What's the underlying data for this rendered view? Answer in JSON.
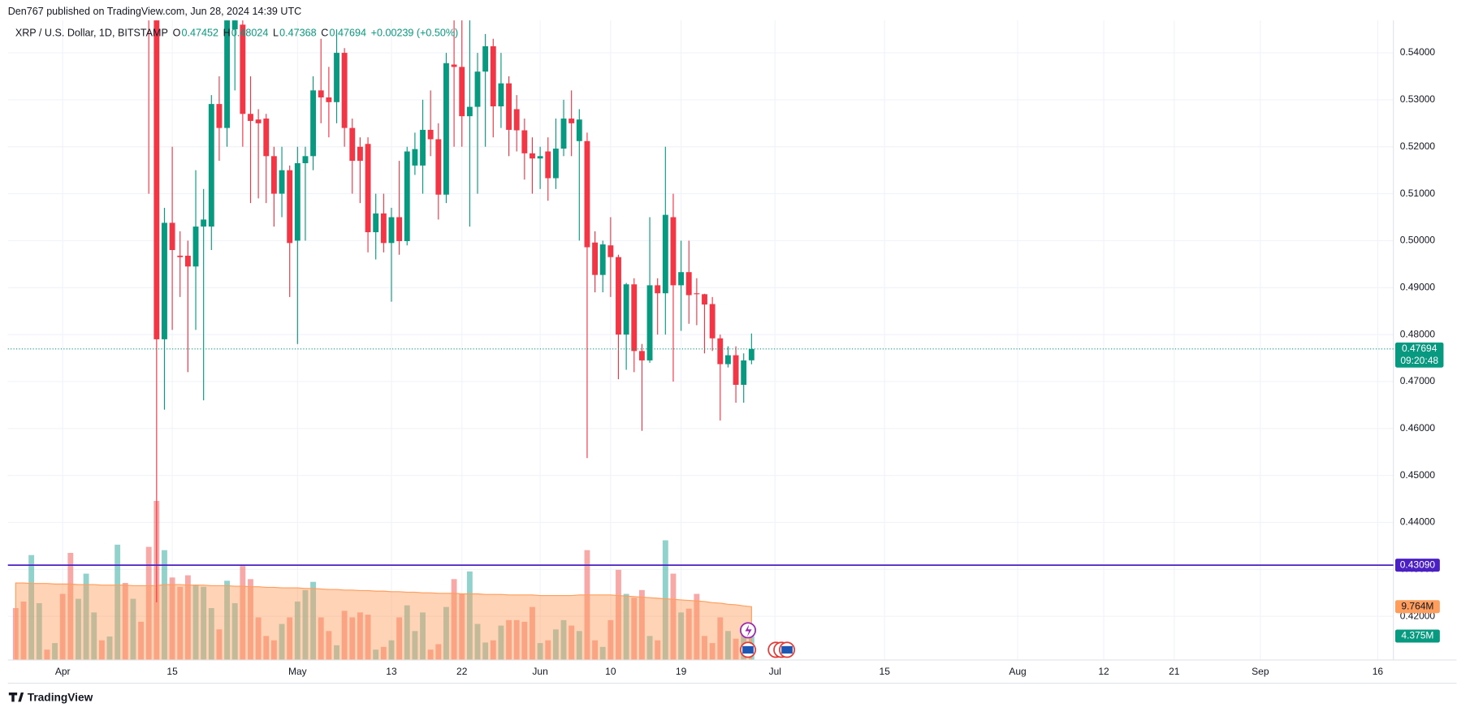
{
  "header": "Den767 published on TradingView.com, Jun 28, 2024 14:39 UTC",
  "footer": "TradingView",
  "chart_data": {
    "type": "candlestick",
    "legend": {
      "symbol": "XRP / U.S. Dollar, 1D, BITSTAMP",
      "open_label": "O",
      "open": "0.47452",
      "high_label": "H",
      "high": "0.48024",
      "low_label": "L",
      "low": "0.47368",
      "close_label": "C",
      "close": "0.47694",
      "change": "+0.00239 (+0.50%)"
    },
    "x": [
      "2024-03-26",
      "2024-03-27",
      "2024-03-28",
      "2024-03-29",
      "2024-03-30",
      "2024-03-31",
      "2024-04-01",
      "2024-04-02",
      "2024-04-03",
      "2024-04-04",
      "2024-04-05",
      "2024-04-06",
      "2024-04-07",
      "2024-04-08",
      "2024-04-09",
      "2024-04-10",
      "2024-04-11",
      "2024-04-12",
      "2024-04-13",
      "2024-04-14",
      "2024-04-15",
      "2024-04-16",
      "2024-04-17",
      "2024-04-18",
      "2024-04-19",
      "2024-04-20",
      "2024-04-21",
      "2024-04-22",
      "2024-04-23",
      "2024-04-24",
      "2024-04-25",
      "2024-04-26",
      "2024-04-27",
      "2024-04-28",
      "2024-04-29",
      "2024-04-30",
      "2024-05-01",
      "2024-05-02",
      "2024-05-03",
      "2024-05-04",
      "2024-05-05",
      "2024-05-06",
      "2024-05-07",
      "2024-05-08",
      "2024-05-09",
      "2024-05-10",
      "2024-05-11",
      "2024-05-12",
      "2024-05-13",
      "2024-05-14",
      "2024-05-15",
      "2024-05-16",
      "2024-05-17",
      "2024-05-18",
      "2024-05-19",
      "2024-05-20",
      "2024-05-21",
      "2024-05-22",
      "2024-05-23",
      "2024-05-24",
      "2024-05-25",
      "2024-05-26",
      "2024-05-27",
      "2024-05-28",
      "2024-05-29",
      "2024-05-30",
      "2024-05-31",
      "2024-06-01",
      "2024-06-02",
      "2024-06-03",
      "2024-06-04",
      "2024-06-05",
      "2024-06-06",
      "2024-06-07",
      "2024-06-08",
      "2024-06-09",
      "2024-06-10",
      "2024-06-11",
      "2024-06-12",
      "2024-06-13",
      "2024-06-14",
      "2024-06-15",
      "2024-06-16",
      "2024-06-17",
      "2024-06-18",
      "2024-06-19",
      "2024-06-20",
      "2024-06-21",
      "2024-06-22",
      "2024-06-23",
      "2024-06-24",
      "2024-06-25",
      "2024-06-26",
      "2024-06-27",
      "2024-06-28"
    ],
    "candles": [
      null,
      null,
      null,
      null,
      null,
      null,
      null,
      null,
      null,
      null,
      null,
      null,
      null,
      null,
      null,
      null,
      null,
      [
        0.615,
        0.622,
        0.51,
        0.587
      ],
      [
        0.587,
        0.595,
        0.423,
        0.479
      ],
      [
        0.479,
        0.507,
        0.464,
        0.5038
      ],
      [
        0.5038,
        0.52,
        0.481,
        0.498
      ],
      [
        0.4968,
        0.502,
        0.488,
        0.4965
      ],
      [
        0.4968,
        0.5,
        0.472,
        0.4945
      ],
      [
        0.4945,
        0.515,
        0.481,
        0.503
      ],
      [
        0.503,
        0.511,
        0.466,
        0.5045
      ],
      [
        0.503,
        0.531,
        0.498,
        0.5291
      ],
      [
        0.5291,
        0.535,
        0.517,
        0.524
      ],
      [
        0.524,
        0.55,
        0.52,
        0.547
      ],
      [
        0.545,
        0.553,
        0.532,
        0.548
      ],
      [
        0.546,
        0.55,
        0.52,
        0.527
      ],
      [
        0.527,
        0.535,
        0.508,
        0.5255
      ],
      [
        0.5258,
        0.528,
        0.509,
        0.525
      ],
      [
        0.526,
        0.527,
        0.508,
        0.518
      ],
      [
        0.518,
        0.52,
        0.503,
        0.51
      ],
      [
        0.51,
        0.52,
        0.505,
        0.515
      ],
      [
        0.515,
        0.516,
        0.488,
        0.4995
      ],
      [
        0.5,
        0.52,
        0.478,
        0.5165
      ],
      [
        0.5165,
        0.52,
        0.5,
        0.518
      ],
      [
        0.518,
        0.535,
        0.515,
        0.532
      ],
      [
        0.532,
        0.543,
        0.525,
        0.5305
      ],
      [
        0.5305,
        0.537,
        0.522,
        0.5295
      ],
      [
        0.5295,
        0.545,
        0.525,
        0.54
      ],
      [
        0.54,
        0.541,
        0.52,
        0.524
      ],
      [
        0.524,
        0.526,
        0.51,
        0.517
      ],
      [
        0.52,
        0.522,
        0.508,
        0.517
      ],
      [
        0.5206,
        0.522,
        0.4975,
        0.5018
      ],
      [
        0.5018,
        0.51,
        0.496,
        0.5058
      ],
      [
        0.5058,
        0.51,
        0.4975,
        0.4995
      ],
      [
        0.4995,
        0.507,
        0.487,
        0.505
      ],
      [
        0.505,
        0.517,
        0.497,
        0.4999
      ],
      [
        0.4999,
        0.52,
        0.499,
        0.519
      ],
      [
        0.516,
        0.523,
        0.514,
        0.5195
      ],
      [
        0.516,
        0.53,
        0.51,
        0.5236
      ],
      [
        0.5236,
        0.532,
        0.518,
        0.5216
      ],
      [
        0.5216,
        0.525,
        0.5045,
        0.5098
      ],
      [
        0.5098,
        0.54,
        0.508,
        0.5378
      ],
      [
        0.5375,
        0.55,
        0.52,
        0.537
      ],
      [
        0.537,
        0.55,
        0.52,
        0.5265
      ],
      [
        0.5265,
        0.55,
        0.503,
        0.5285
      ],
      [
        0.5285,
        0.54,
        0.51,
        0.536
      ],
      [
        0.536,
        0.544,
        0.52,
        0.5414
      ],
      [
        0.5414,
        0.543,
        0.522,
        0.5286
      ],
      [
        0.5286,
        0.54,
        0.524,
        0.5335
      ],
      [
        0.5335,
        0.535,
        0.518,
        0.5236
      ],
      [
        0.528,
        0.531,
        0.519,
        0.5235
      ],
      [
        0.5235,
        0.526,
        0.513,
        0.5186
      ],
      [
        0.5186,
        0.522,
        0.51,
        0.5175
      ],
      [
        0.5175,
        0.52,
        0.511,
        0.518
      ],
      [
        0.519,
        0.522,
        0.5085,
        0.5133
      ],
      [
        0.5133,
        0.526,
        0.511,
        0.5196
      ],
      [
        0.5196,
        0.53,
        0.518,
        0.526
      ],
      [
        0.526,
        0.532,
        0.518,
        0.525
      ],
      [
        0.5212,
        0.528,
        0.5,
        0.5258
      ],
      [
        0.5212,
        0.523,
        0.4537,
        0.4986
      ],
      [
        0.4996,
        0.502,
        0.489,
        0.4927
      ],
      [
        0.4927,
        0.5,
        0.489,
        0.4992
      ],
      [
        0.499,
        0.505,
        0.488,
        0.4965
      ],
      [
        0.4965,
        0.497,
        0.4705,
        0.48
      ],
      [
        0.48,
        0.491,
        0.4725,
        0.4907
      ],
      [
        0.4907,
        0.492,
        0.472,
        0.4765
      ],
      [
        0.4765,
        0.478,
        0.4595,
        0.4745
      ],
      [
        0.4745,
        0.505,
        0.474,
        0.4905
      ],
      [
        0.4905,
        0.492,
        0.48,
        0.4888
      ],
      [
        0.4888,
        0.52,
        0.48,
        0.5055
      ],
      [
        0.505,
        0.51,
        0.47,
        0.4905
      ],
      [
        0.4905,
        0.5,
        0.4808,
        0.4933
      ],
      [
        0.4933,
        0.5,
        0.4823,
        0.4884
      ],
      [
        0.4888,
        0.492,
        0.482,
        0.4886
      ],
      [
        0.4886,
        0.4887,
        0.476,
        0.4864
      ],
      [
        0.4865,
        0.488,
        0.4765,
        0.4792
      ],
      [
        0.4792,
        0.48,
        0.4617,
        0.4737
      ],
      [
        0.4737,
        0.4775,
        0.473,
        0.4756
      ],
      [
        0.4756,
        0.4775,
        0.4655,
        0.4693
      ],
      [
        0.4693,
        0.476,
        0.4655,
        0.4745
      ],
      [
        0.47452,
        0.48024,
        0.47368,
        0.47694
      ]
    ],
    "volume": [
      9.5,
      10.7,
      19.2,
      10.4,
      1.9,
      3.1,
      12.1,
      19.6,
      11.2,
      15.8,
      8.7,
      3.6,
      4.3,
      21.1,
      14.1,
      11.2,
      7.0,
      20.7,
      29.1,
      20.1,
      15.1,
      13.4,
      15.5,
      13.8,
      13.4,
      9.5,
      5.6,
      14.5,
      10.4,
      17.2,
      14.8,
      7.8,
      4.4,
      3.6,
      6.6,
      7.8,
      10.7,
      12.8,
      14.3,
      7.8,
      5.3,
      2.7,
      9.0,
      7.8,
      8.7,
      8.3,
      1.9,
      2.4,
      3.6,
      7.8,
      10.0,
      5.3,
      8.7,
      1.9,
      2.9,
      9.7,
      14.8,
      12.1,
      16.2,
      6.6,
      3.2,
      3.6,
      6.3,
      7.3,
      7.3,
      7.0,
      9.7,
      3.1,
      3.6,
      5.6,
      7.3,
      6.3,
      5.3,
      20.1,
      3.6,
      2.4,
      7.3,
      16.5,
      12.1,
      11.4,
      12.8,
      4.4,
      3.6,
      21.9,
      15.8,
      8.7,
      9.4,
      12.1,
      4.4,
      3.1,
      7.8,
      5.3,
      3.9,
      4.6,
      4.375
    ],
    "volume_up": [
      false,
      false,
      true,
      true,
      false,
      true,
      false,
      false,
      true,
      true,
      true,
      false,
      true,
      true,
      false,
      true,
      false,
      false,
      false,
      true,
      false,
      false,
      false,
      true,
      true,
      true,
      false,
      true,
      true,
      false,
      false,
      false,
      false,
      false,
      true,
      false,
      true,
      true,
      true,
      false,
      false,
      true,
      false,
      false,
      false,
      false,
      true,
      false,
      true,
      false,
      true,
      true,
      true,
      false,
      false,
      true,
      false,
      false,
      true,
      true,
      true,
      false,
      true,
      false,
      false,
      false,
      false,
      true,
      false,
      true,
      true,
      false,
      true,
      false,
      false,
      true,
      false,
      false,
      true,
      false,
      false,
      true,
      false,
      true,
      false,
      true,
      false,
      false,
      false,
      false,
      false,
      true,
      false,
      true,
      true
    ],
    "volume_ma": [
      14.1,
      14.1,
      14.0,
      14.0,
      14.0,
      13.9,
      13.9,
      13.9,
      13.8,
      13.8,
      13.8,
      13.7,
      13.7,
      13.7,
      13.7,
      13.6,
      13.6,
      13.6,
      13.6,
      13.8,
      13.8,
      13.8,
      13.7,
      13.7,
      13.7,
      13.6,
      13.6,
      13.6,
      13.5,
      13.5,
      13.4,
      13.4,
      13.3,
      13.3,
      13.2,
      13.2,
      13.2,
      13.1,
      13.1,
      13.0,
      12.9,
      12.9,
      12.8,
      12.8,
      12.7,
      12.7,
      12.6,
      12.6,
      12.5,
      12.5,
      12.4,
      12.4,
      12.3,
      12.3,
      12.2,
      12.2,
      12.2,
      12.1,
      12.1,
      12.1,
      12.0,
      12.0,
      12.0,
      11.9,
      11.9,
      11.9,
      11.9,
      11.8,
      11.8,
      11.8,
      11.8,
      11.8,
      11.9,
      11.9,
      11.9,
      11.9,
      11.9,
      11.8,
      11.7,
      11.6,
      11.5,
      11.4,
      11.3,
      11.2,
      11.1,
      11.0,
      10.9,
      10.8,
      10.7,
      10.5,
      10.4,
      10.2,
      10.1,
      9.9,
      9.764
    ],
    "volume_ma_label": "9.764M",
    "volume_label": "4.375M",
    "volume_ylim": [
      0,
      117
    ],
    "price_label": "0.47694",
    "countdown": "09:20:48",
    "hline": {
      "value": 0.4309,
      "label": "0.43090",
      "color": "#4a1fc4"
    },
    "up_color": "#089981",
    "down_color": "#f23645",
    "volume_up_color": "rgba(38,166,154,0.5)",
    "volume_down_color": "rgba(239,83,80,0.5)",
    "volume_ma_color": "#ff9d5c",
    "xlim": [
      "2024-03-25",
      "2024-09-18"
    ],
    "ylim": [
      0.4107,
      0.5469
    ],
    "yticks": [
      {
        "value": 0.42,
        "label": "0.42000"
      },
      {
        "value": 0.43,
        "label": "0.43000"
      },
      {
        "value": 0.44,
        "label": "0.44000"
      },
      {
        "value": 0.45,
        "label": "0.45000"
      },
      {
        "value": 0.46,
        "label": "0.46000"
      },
      {
        "value": 0.47,
        "label": "0.47000"
      },
      {
        "value": 0.48,
        "label": "0.48000"
      },
      {
        "value": 0.49,
        "label": "0.49000"
      },
      {
        "value": 0.5,
        "label": "0.50000"
      },
      {
        "value": 0.51,
        "label": "0.51000"
      },
      {
        "value": 0.52,
        "label": "0.52000"
      },
      {
        "value": 0.53,
        "label": "0.53000"
      },
      {
        "value": 0.54,
        "label": "0.54000"
      }
    ],
    "xticks": [
      {
        "value": "2024-04-01",
        "label": "Apr"
      },
      {
        "value": "2024-04-15",
        "label": "15"
      },
      {
        "value": "2024-05-01",
        "label": "May"
      },
      {
        "value": "2024-05-13",
        "label": "13"
      },
      {
        "value": "2024-05-22",
        "label": "22"
      },
      {
        "value": "2024-06-01",
        "label": "Jun"
      },
      {
        "value": "2024-06-10",
        "label": "10"
      },
      {
        "value": "2024-06-19",
        "label": "19"
      },
      {
        "value": "2024-07-01",
        "label": "Jul"
      },
      {
        "value": "2024-07-15",
        "label": "15"
      },
      {
        "value": "2024-08-01",
        "label": "Aug"
      },
      {
        "value": "2024-08-12",
        "label": "12"
      },
      {
        "value": "2024-08-21",
        "label": "21"
      },
      {
        "value": "2024-09-01",
        "label": "Sep"
      },
      {
        "value": "2024-09-16",
        "label": "16"
      }
    ],
    "grid": true
  }
}
